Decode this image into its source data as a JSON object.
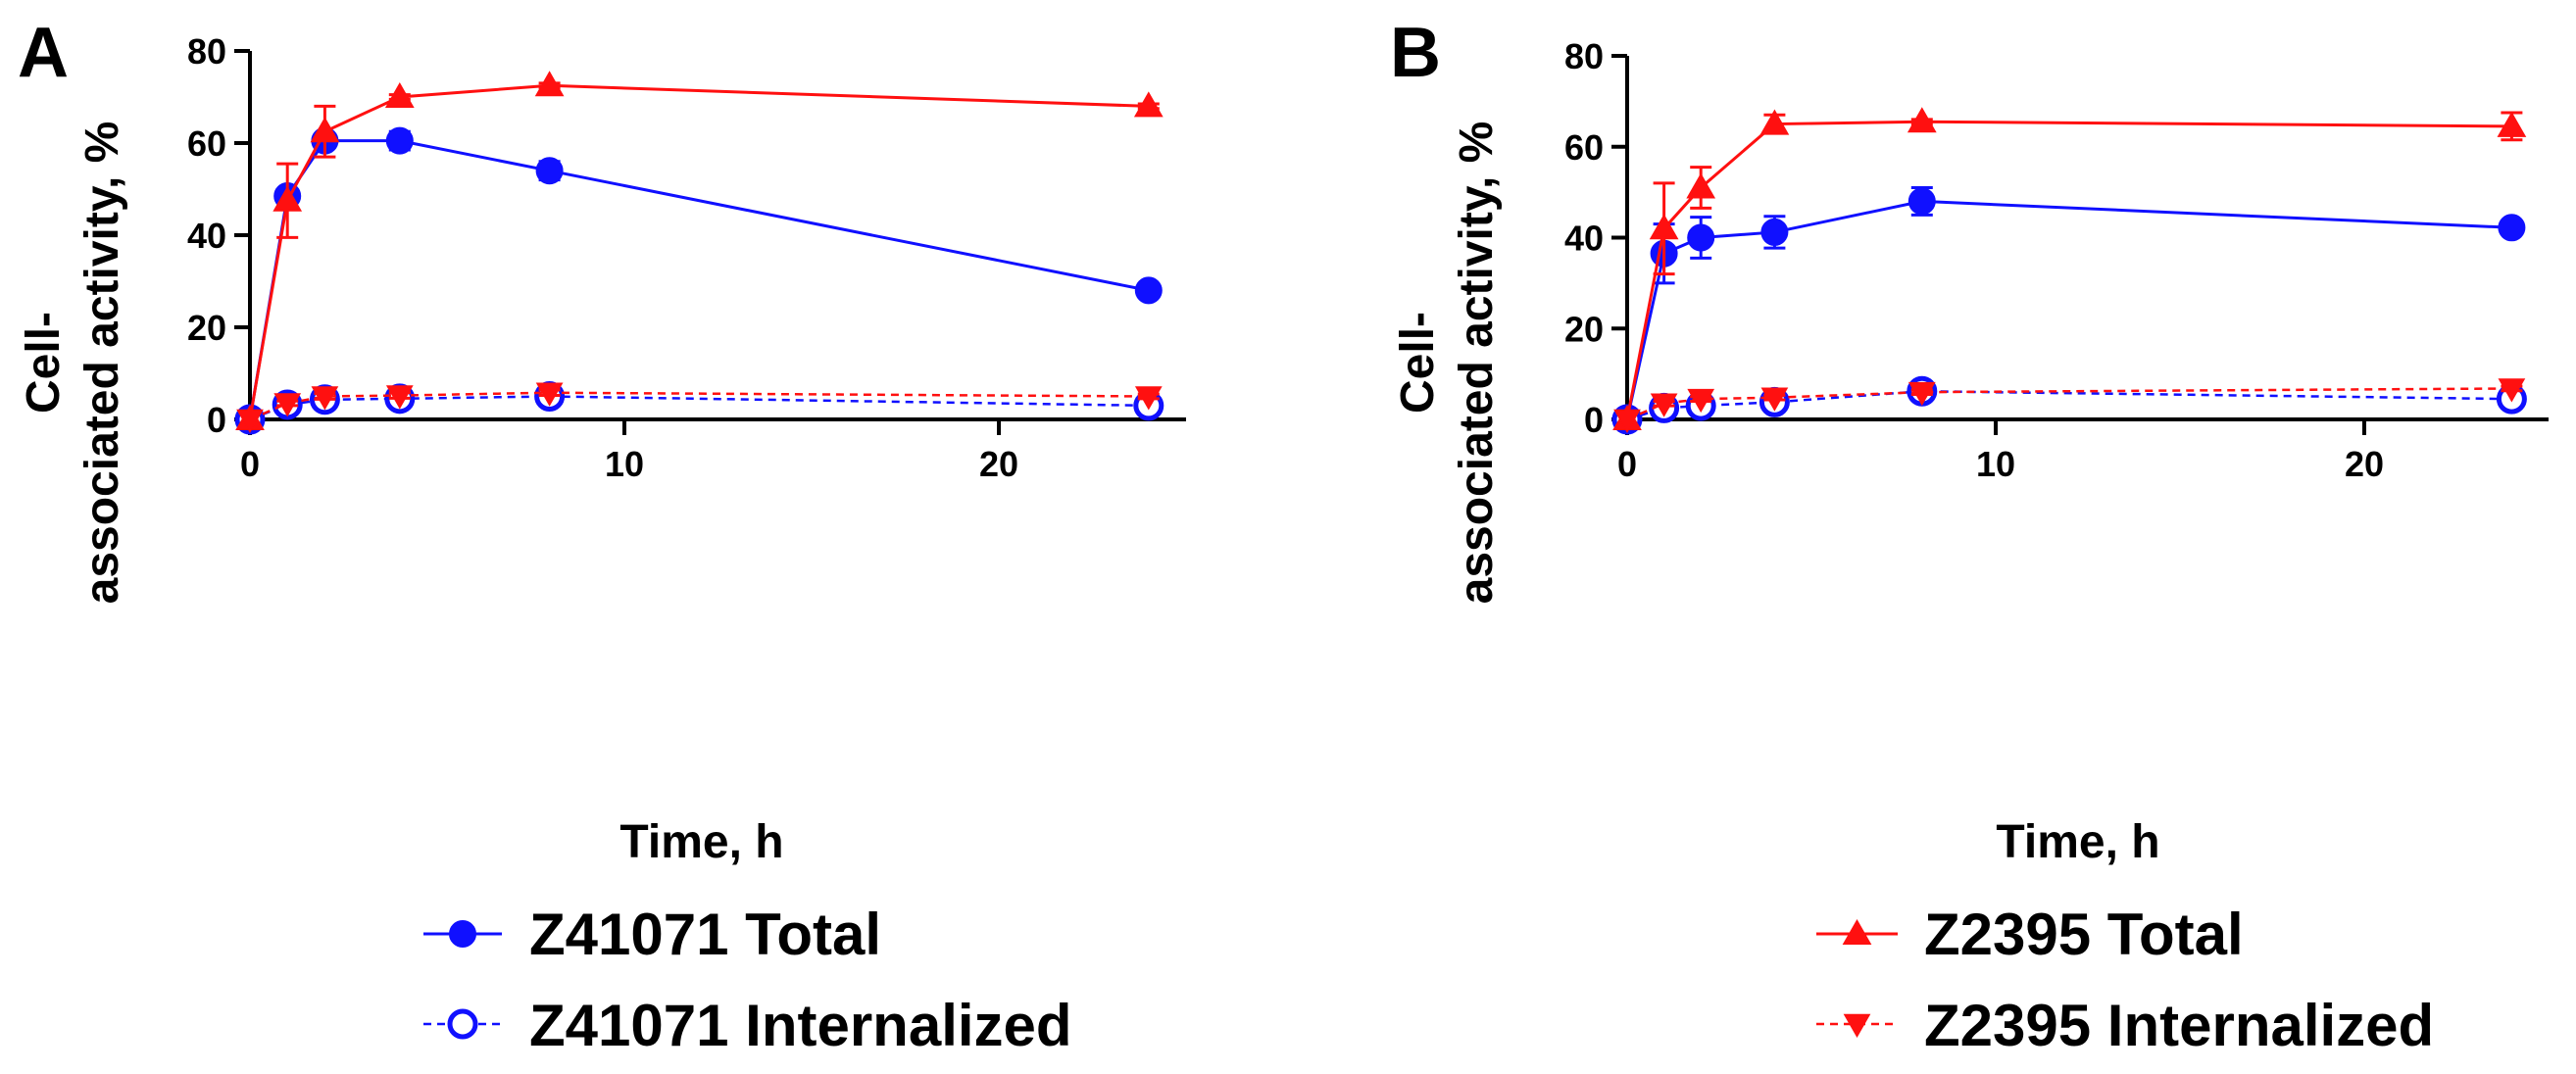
{
  "colors": {
    "blue": "#1010ff",
    "red": "#ff1010",
    "axis": "#000000"
  },
  "chart_data": [
    {
      "panel": "A",
      "type": "line",
      "xlabel": "Time, h",
      "ylabel_line1": "Cell-",
      "ylabel_line2": "associated activity, %",
      "xlim": [
        0,
        25
      ],
      "ylim": [
        0,
        80
      ],
      "xticks": [
        0,
        10,
        20
      ],
      "yticks": [
        0,
        20,
        40,
        60,
        80
      ],
      "series": [
        {
          "name": "Z41071 Total",
          "color": "#1010ff",
          "marker": "circle",
          "filled": true,
          "dashed": false,
          "x": [
            0,
            1,
            2,
            4,
            8,
            24
          ],
          "y": [
            0,
            48.5,
            60.5,
            60.5,
            54,
            28
          ],
          "err": [
            0,
            1.5,
            1.5,
            2,
            2,
            0.5
          ]
        },
        {
          "name": "Z41071 Internalized",
          "color": "#1010ff",
          "marker": "circle",
          "filled": false,
          "dashed": true,
          "x": [
            0,
            1,
            2,
            4,
            8,
            24
          ],
          "y": [
            0,
            3.2,
            4.3,
            4.5,
            5,
            3
          ],
          "err": [
            0,
            0.5,
            0.5,
            0.5,
            0.5,
            0.5
          ]
        },
        {
          "name": "Z2395 Total",
          "color": "#ff1010",
          "marker": "triangle-up",
          "filled": true,
          "dashed": false,
          "x": [
            0,
            1,
            2,
            4,
            8,
            24
          ],
          "y": [
            0,
            47.5,
            62.5,
            70,
            72.5,
            68
          ],
          "err": [
            0,
            8,
            5.5,
            0.5,
            0.5,
            0.5
          ]
        },
        {
          "name": "Z2395 Internalized",
          "color": "#ff1010",
          "marker": "triangle-down",
          "filled": true,
          "dashed": true,
          "x": [
            0,
            1,
            2,
            4,
            8,
            24
          ],
          "y": [
            0,
            3.5,
            5,
            5.2,
            5.8,
            5
          ],
          "err": [
            0,
            0.5,
            0.6,
            0.6,
            0.6,
            0.5
          ]
        }
      ]
    },
    {
      "panel": "B",
      "type": "line",
      "xlabel": "Time, h",
      "ylabel_line1": "Cell-",
      "ylabel_line2": "associated activity, %",
      "xlim": [
        0,
        25
      ],
      "ylim": [
        0,
        80
      ],
      "xticks": [
        0,
        10,
        20
      ],
      "yticks": [
        0,
        20,
        40,
        60,
        80
      ],
      "series": [
        {
          "name": "Z41071 Total",
          "color": "#1010ff",
          "marker": "circle",
          "filled": true,
          "dashed": false,
          "x": [
            0,
            1,
            2,
            4,
            8,
            24
          ],
          "y": [
            0,
            36.5,
            40,
            41.2,
            48,
            42.2
          ],
          "err": [
            0,
            6.5,
            4.5,
            3.5,
            3,
            0.5
          ]
        },
        {
          "name": "Z41071 Internalized",
          "color": "#1010ff",
          "marker": "circle",
          "filled": false,
          "dashed": true,
          "x": [
            0,
            1,
            2,
            4,
            8,
            24
          ],
          "y": [
            0,
            2.5,
            3,
            3.8,
            6.2,
            4.5
          ],
          "err": [
            0,
            0.5,
            0.5,
            0.5,
            0.5,
            0.5
          ]
        },
        {
          "name": "Z2395 Total",
          "color": "#ff1010",
          "marker": "triangle-up",
          "filled": true,
          "dashed": false,
          "x": [
            0,
            1,
            2,
            4,
            8,
            24
          ],
          "y": [
            0,
            42,
            51,
            65,
            65.5,
            64.5
          ],
          "err": [
            0,
            10,
            4.5,
            2,
            0.5,
            3
          ]
        },
        {
          "name": "Z2395 Internalized",
          "color": "#ff1010",
          "marker": "triangle-down",
          "filled": true,
          "dashed": true,
          "x": [
            0,
            1,
            2,
            4,
            8,
            24
          ],
          "y": [
            0,
            3.5,
            4.5,
            4.8,
            6,
            6.8
          ],
          "err": [
            0,
            0.5,
            0.5,
            0.5,
            0.5,
            0.5
          ]
        }
      ]
    }
  ],
  "legend_left": [
    {
      "label": "Z41071 Total",
      "color": "#1010ff",
      "marker": "circle",
      "filled": true,
      "dashed": false
    },
    {
      "label": "Z41071 Internalized",
      "color": "#1010ff",
      "marker": "circle",
      "filled": false,
      "dashed": true
    }
  ],
  "legend_right": [
    {
      "label": "Z2395 Total",
      "color": "#ff1010",
      "marker": "triangle-up",
      "filled": true,
      "dashed": false
    },
    {
      "label": "Z2395 Internalized",
      "color": "#ff1010",
      "marker": "triangle-down",
      "filled": true,
      "dashed": true
    }
  ]
}
